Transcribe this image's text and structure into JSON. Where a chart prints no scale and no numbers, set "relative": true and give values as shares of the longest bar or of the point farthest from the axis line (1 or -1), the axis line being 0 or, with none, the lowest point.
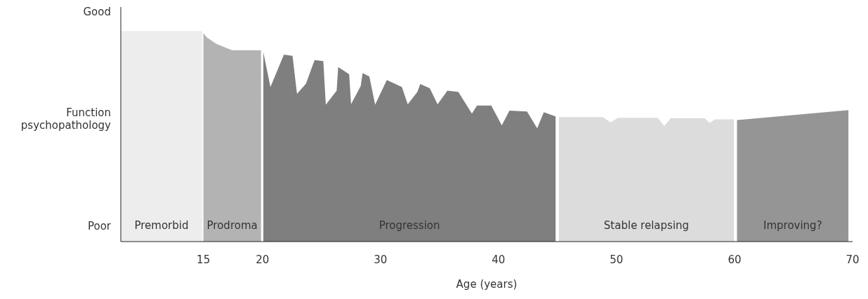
{
  "chart_data": {
    "type": "area",
    "xlabel": "Age (years)",
    "relative": true,
    "annotations": [
      "Good",
      "Function psychopathology",
      "Poor"
    ],
    "xlim": [
      8,
      70
    ],
    "xticks": [
      15,
      20,
      30,
      40,
      50,
      60,
      70
    ],
    "grid": false,
    "legend": false,
    "series": [
      {
        "name": "Premorbid",
        "color": "#ededed",
        "x": [
          8,
          14.9
        ],
        "values": [
          1,
          1
        ]
      },
      {
        "name": "Prodroma",
        "color": "#b3b3b3",
        "x": [
          15,
          15.28,
          16.1,
          17.44,
          19.88
        ],
        "values": [
          0.99,
          0.97,
          0.939,
          0.909,
          0.909
        ]
      },
      {
        "name": "Progression",
        "color": "#7f7f7f",
        "x": [
          20.08,
          20.68,
          21.82,
          22.55,
          22.93,
          23.69,
          24.42,
          25.16,
          25.37,
          26.29,
          26.42,
          27.35,
          27.51,
          28.33,
          28.49,
          29.06,
          29.55,
          30.54,
          31.82,
          32.31,
          33.13,
          33.37,
          34.18,
          34.84,
          35.67,
          36.6,
          37.75,
          38.18,
          39.39,
          40.28,
          40.93,
          42.42,
          43.28,
          43.84,
          44.84
        ],
        "values": [
          0.899,
          0.734,
          0.888,
          0.882,
          0.702,
          0.75,
          0.862,
          0.857,
          0.65,
          0.717,
          0.829,
          0.795,
          0.653,
          0.739,
          0.801,
          0.784,
          0.65,
          0.767,
          0.734,
          0.652,
          0.711,
          0.748,
          0.728,
          0.652,
          0.717,
          0.711,
          0.608,
          0.646,
          0.646,
          0.552,
          0.622,
          0.618,
          0.538,
          0.614,
          0.594
        ]
      },
      {
        "name": "Stable relapsing",
        "color": "#dcdcdc",
        "x": [
          45.12,
          48.84,
          49.49,
          50.14,
          53.5,
          54.05,
          54.59,
          57.46,
          57.89,
          58.34,
          59.95
        ],
        "values": [
          0.591,
          0.591,
          0.566,
          0.588,
          0.588,
          0.549,
          0.586,
          0.586,
          0.564,
          0.58,
          0.58
        ]
      },
      {
        "name": "Improving?",
        "color": "#959595",
        "x": [
          60.21,
          69.65
        ],
        "values": [
          0.577,
          0.624
        ]
      }
    ]
  }
}
